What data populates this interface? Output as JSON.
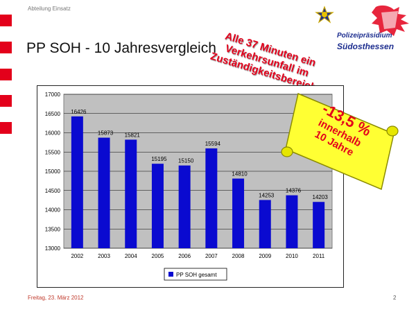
{
  "header": {
    "department": "Abteilung Einsatz",
    "title": "PP SOH - 10 Jahresvergleich"
  },
  "logo": {
    "line1": "Polizeipräsidium",
    "line2": "Südosthessen"
  },
  "annotation": {
    "lines": [
      "Alle 37 Minuten ein",
      "Verkehrsunfall im",
      "Zuständigkeitsbereich"
    ]
  },
  "scroll_note": {
    "big": "-13,5 %",
    "line2": "innerhalb",
    "line3": "10 Jahre"
  },
  "footer": {
    "date": "Freitag, 23. März 2012",
    "page": "2"
  },
  "colors": {
    "accent_red": "#e3001b",
    "bar": "#0a0ad0",
    "plot_bg": "#c0c0c0",
    "scroll": "#ffff33"
  },
  "chart_data": {
    "type": "bar",
    "title": "",
    "xlabel": "",
    "ylabel": "",
    "categories": [
      "2002",
      "2003",
      "2004",
      "2005",
      "2006",
      "2007",
      "2008",
      "2009",
      "2010",
      "2011"
    ],
    "series": [
      {
        "name": "PP SOH  gesamt",
        "values": [
          16426,
          15873,
          15821,
          15195,
          15150,
          15594,
          14810,
          14253,
          14376,
          14203
        ]
      }
    ],
    "ylim": [
      13000,
      17000
    ],
    "yticks": [
      "13000",
      "13500",
      "14000",
      "14500",
      "15000",
      "15500",
      "16000",
      "16500",
      "17000"
    ],
    "grid": true,
    "legend": "bottom"
  }
}
